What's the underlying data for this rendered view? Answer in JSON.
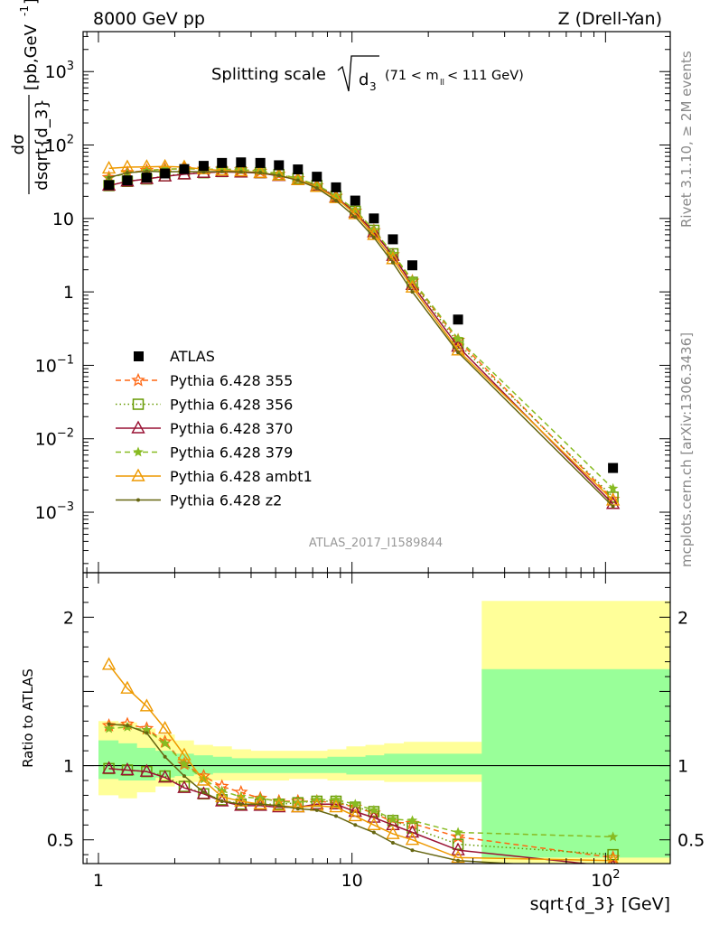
{
  "header": {
    "left": "8000 GeV pp",
    "right": "Z (Drell-Yan)",
    "side_top": "Rivet 3.1.10, ≥ 2M events",
    "side_bottom": "mcplots.cern.ch [arXiv:1306.3436]",
    "watermark": "ATLAS_2017_I1589844"
  },
  "chart_data": [
    {
      "type": "line",
      "title_main": "Splitting scale",
      "title_sym": "d",
      "title_sub": "3",
      "title_range_pre": "(71 < m",
      "title_range_sub": "ll",
      "title_range_post": " < 111 GeV)",
      "ylabel_num": "dσ",
      "ylabel_den": "dsqrt{d_3}",
      "ylabel_unit": "[pb,GeV",
      "ylabel_unit_exp": "-1",
      "ylabel_unit_close": "]",
      "xscale": "log",
      "yscale": "log",
      "xlim": [
        0.87,
        180
      ],
      "ylim": [
        0.00015,
        3500
      ],
      "y_ticklabels": [
        {
          "v": 0.001,
          "b": "10",
          "e": "−3"
        },
        {
          "v": 0.01,
          "b": "10",
          "e": "−2"
        },
        {
          "v": 0.1,
          "b": "10",
          "e": "−1"
        },
        {
          "v": 1,
          "b": "1",
          "e": ""
        },
        {
          "v": 10,
          "b": "10",
          "e": ""
        },
        {
          "v": 100,
          "b": "10",
          "e": "2"
        },
        {
          "v": 1000,
          "b": "10",
          "e": "3"
        }
      ],
      "legend_position": "lower-left",
      "x": [
        1.1,
        1.3,
        1.55,
        1.83,
        2.18,
        2.6,
        3.07,
        3.65,
        4.35,
        5.15,
        6.12,
        7.27,
        8.65,
        10.3,
        12.2,
        14.5,
        17.3,
        26.2,
        107
      ],
      "data": {
        "name": "ATLAS",
        "color": "#000000",
        "values": [
          28.5,
          33,
          36,
          41,
          47,
          52,
          57,
          58,
          57,
          53,
          46.5,
          37,
          26.5,
          17.5,
          10,
          5.2,
          2.3,
          0.42,
          0.004
        ]
      },
      "series": [
        {
          "name": "Pythia 6.428 355",
          "color": "#ff6611",
          "dash": "6,4",
          "marker": "star",
          "values": [
            36,
            42,
            45,
            47,
            47.5,
            47,
            47,
            46,
            44,
            40,
            35,
            28,
            20,
            12.6,
            6.8,
            3.2,
            1.4,
            0.22,
            0.0015
          ]
        },
        {
          "name": "Pythia 6.428 356",
          "color": "#669900",
          "dash": "1.5,3",
          "marker": "square",
          "values": [
            28,
            32,
            34.5,
            38,
            40.5,
            42,
            43.5,
            43,
            42,
            39.5,
            35,
            28,
            20,
            12.5,
            6.9,
            3.3,
            1.35,
            0.2,
            0.0016
          ]
        },
        {
          "name": "Pythia 6.428 370",
          "color": "#991133",
          "dash": "",
          "marker": "triangle",
          "values": [
            28,
            32,
            34.5,
            37.5,
            40,
            42,
            43,
            42.5,
            41.5,
            38,
            33.5,
            27.5,
            19.5,
            12,
            6.5,
            3.1,
            1.25,
            0.18,
            0.0013
          ]
        },
        {
          "name": "Pythia 6.428 379",
          "color": "#88bb22",
          "dash": "6,4",
          "marker": "smallstar",
          "values": [
            35.5,
            41.5,
            44.5,
            47,
            47.5,
            47,
            47,
            46,
            44.5,
            40.5,
            35,
            28.5,
            20.5,
            13,
            7,
            3.3,
            1.45,
            0.23,
            0.0021
          ]
        },
        {
          "name": "Pythia 6.428 ambt1",
          "color": "#ee9900",
          "dash": "",
          "marker": "triangle",
          "values": [
            48,
            50,
            50.5,
            51,
            50,
            47,
            45,
            44,
            42,
            38.5,
            33.5,
            27,
            19,
            11.5,
            6,
            2.8,
            1.15,
            0.16,
            0.00145
          ]
        },
        {
          "name": "Pythia 6.428 z2",
          "color": "#666611",
          "dash": "",
          "marker": "dot",
          "values": [
            36,
            42,
            44,
            43,
            43.5,
            43,
            43.5,
            43,
            42,
            38.5,
            33,
            26,
            17.5,
            10.5,
            5.5,
            2.5,
            1,
            0.15,
            0.0012
          ]
        }
      ]
    },
    {
      "type": "line",
      "ylabel": "Ratio to ATLAS",
      "xlabel": "sqrt{d_3} [GeV]",
      "xscale": "log",
      "xlim": [
        0.87,
        180
      ],
      "ylim": [
        0.34,
        2.3
      ],
      "yticks": [
        0.5,
        1,
        2
      ],
      "y_ticklabels": [
        "0.5",
        "1",
        "2"
      ],
      "x_ticklabels": [
        {
          "v": 1,
          "b": "1",
          "e": ""
        },
        {
          "v": 10,
          "b": "10",
          "e": ""
        },
        {
          "v": 100,
          "b": "10",
          "e": "2"
        }
      ],
      "bin_edges": [
        1,
        1.2,
        1.42,
        1.68,
        2,
        2.38,
        2.83,
        3.36,
        4,
        4.75,
        5.65,
        6.72,
        8,
        9.5,
        11.3,
        13.4,
        16,
        19,
        32.5,
        180
      ],
      "band_outer": [
        [
          0.8,
          1.3
        ],
        [
          0.78,
          1.29
        ],
        [
          0.82,
          1.25
        ],
        [
          0.86,
          1.21
        ],
        [
          0.88,
          1.17
        ],
        [
          0.89,
          1.14
        ],
        [
          0.9,
          1.13
        ],
        [
          0.9,
          1.11
        ],
        [
          0.9,
          1.1
        ],
        [
          0.9,
          1.1
        ],
        [
          0.91,
          1.1
        ],
        [
          0.91,
          1.1
        ],
        [
          0.9,
          1.11
        ],
        [
          0.9,
          1.13
        ],
        [
          0.9,
          1.14
        ],
        [
          0.89,
          1.15
        ],
        [
          0.89,
          1.16
        ],
        [
          0.89,
          1.16
        ],
        [
          0.29,
          2.11
        ]
      ],
      "band_inner": [
        [
          0.91,
          1.17
        ],
        [
          0.9,
          1.15
        ],
        [
          0.9,
          1.12
        ],
        [
          0.92,
          1.1
        ],
        [
          0.93,
          1.08
        ],
        [
          0.94,
          1.07
        ],
        [
          0.95,
          1.06
        ],
        [
          0.95,
          1.05
        ],
        [
          0.95,
          1.05
        ],
        [
          0.95,
          1.05
        ],
        [
          0.95,
          1.05
        ],
        [
          0.95,
          1.05
        ],
        [
          0.95,
          1.06
        ],
        [
          0.94,
          1.06
        ],
        [
          0.94,
          1.07
        ],
        [
          0.94,
          1.08
        ],
        [
          0.94,
          1.08
        ],
        [
          0.94,
          1.08
        ],
        [
          0.38,
          1.65
        ]
      ],
      "band_colors": {
        "outer": "#ffff99",
        "inner": "#99ff99"
      },
      "series": [
        {
          "name": "Pythia 6.428 355",
          "values": [
            1.27,
            1.28,
            1.25,
            1.16,
            1.01,
            0.93,
            0.86,
            0.82,
            0.78,
            0.76,
            0.76,
            0.76,
            0.75,
            0.72,
            0.68,
            0.62,
            0.61,
            0.52,
            0.38
          ]
        },
        {
          "name": "Pythia 6.428 356",
          "values": [
            0.98,
            0.97,
            0.96,
            0.93,
            0.86,
            0.81,
            0.77,
            0.74,
            0.74,
            0.74,
            0.75,
            0.76,
            0.76,
            0.72,
            0.69,
            0.63,
            0.58,
            0.47,
            0.4
          ]
        },
        {
          "name": "Pythia 6.428 370",
          "values": [
            0.98,
            0.97,
            0.96,
            0.92,
            0.85,
            0.81,
            0.76,
            0.73,
            0.73,
            0.72,
            0.72,
            0.74,
            0.74,
            0.69,
            0.65,
            0.6,
            0.55,
            0.43,
            0.32
          ]
        },
        {
          "name": "Pythia 6.428 379",
          "values": [
            1.25,
            1.26,
            1.24,
            1.15,
            1.01,
            0.91,
            0.83,
            0.79,
            0.78,
            0.76,
            0.75,
            0.77,
            0.77,
            0.74,
            0.7,
            0.64,
            0.63,
            0.55,
            0.52
          ]
        },
        {
          "name": "Pythia 6.428 ambt1",
          "values": [
            1.68,
            1.52,
            1.4,
            1.25,
            1.07,
            0.9,
            0.79,
            0.76,
            0.74,
            0.73,
            0.72,
            0.73,
            0.72,
            0.66,
            0.6,
            0.54,
            0.5,
            0.38,
            0.36
          ]
        },
        {
          "name": "Pythia 6.428 z2",
          "values": [
            1.28,
            1.27,
            1.22,
            1.06,
            0.93,
            0.82,
            0.76,
            0.74,
            0.74,
            0.73,
            0.71,
            0.7,
            0.66,
            0.6,
            0.55,
            0.48,
            0.43,
            0.36,
            0.3
          ]
        }
      ]
    }
  ]
}
